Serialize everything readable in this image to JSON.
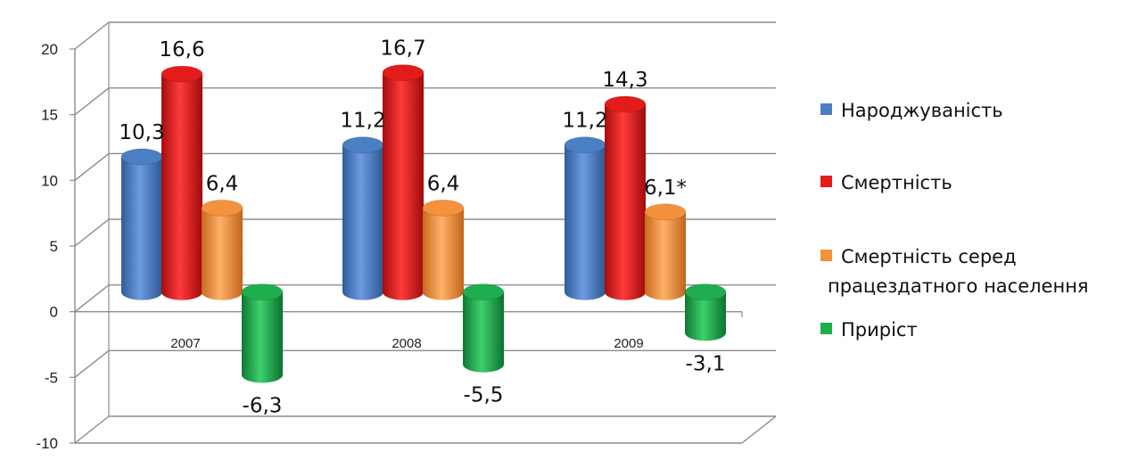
{
  "chart_data": {
    "type": "bar",
    "categories": [
      "2007",
      "2008",
      "2009"
    ],
    "series": [
      {
        "name": "Народжуваність",
        "values": [
          10.3,
          11.2,
          11.2
        ],
        "labels": [
          "10,3",
          "11,2",
          "11,2"
        ],
        "color": "#4a7fc4"
      },
      {
        "name": "Смертність",
        "values": [
          16.6,
          16.7,
          14.3
        ],
        "labels": [
          "16,6",
          "16,7",
          "14,3"
        ],
        "color": "#e41b1b"
      },
      {
        "name": "Смертність серед працездатного населення",
        "name_lines": [
          "Смертність серед",
          "працездатного населення"
        ],
        "values": [
          6.4,
          6.4,
          6.1
        ],
        "labels": [
          "6,4",
          "6,4",
          "6,1*"
        ],
        "color": "#f3913d"
      },
      {
        "name": "Приріст",
        "values": [
          -6.3,
          -5.5,
          -3.1
        ],
        "labels": [
          "-6,3",
          "-5,5",
          "-3,1"
        ],
        "color": "#1fae4d"
      }
    ],
    "yticks": [
      "20",
      "15",
      "10",
      "5",
      "0",
      "-5",
      "-10"
    ],
    "ylim": [
      -10,
      20
    ],
    "grid": true,
    "legend_position": "right",
    "title": "",
    "xlabel": "",
    "ylabel": ""
  }
}
